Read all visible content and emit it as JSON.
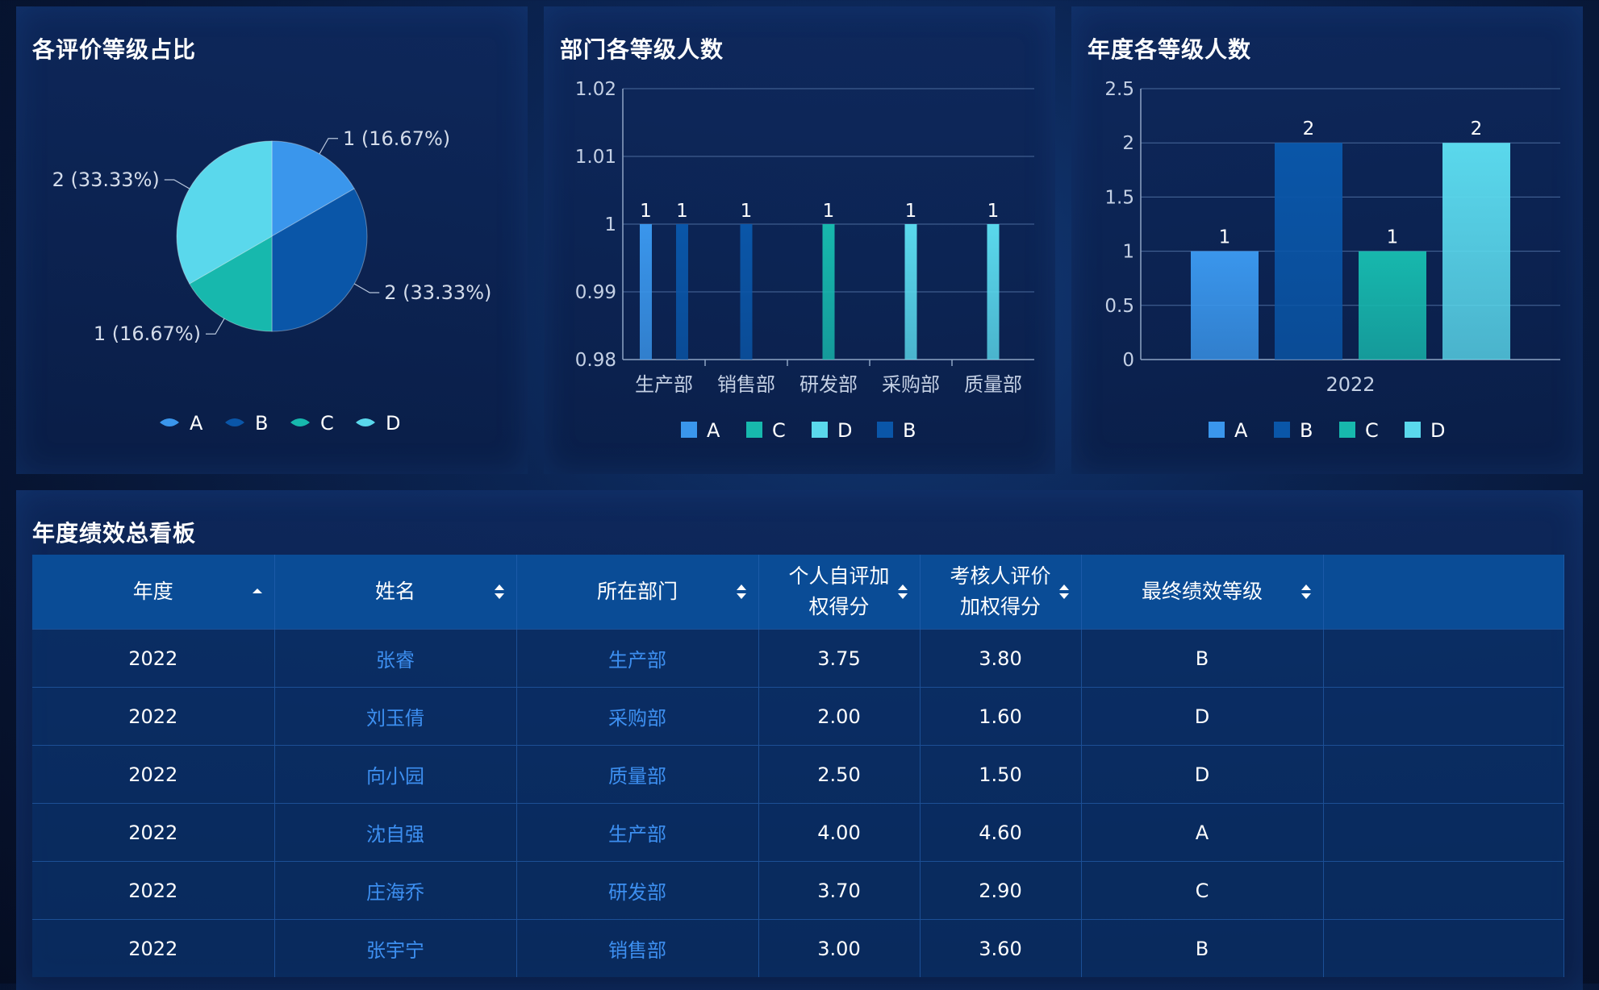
{
  "colors": {
    "A": "#3a96ec",
    "B": "#0a56a8",
    "C": "#17b8ad",
    "D": "#5ad8ec"
  },
  "panels": {
    "pie": {
      "title": "各评价等级占比"
    },
    "dept": {
      "title": "部门各等级人数"
    },
    "year": {
      "title": "年度各等级人数"
    },
    "table": {
      "title": "年度绩效总看板"
    }
  },
  "chart_data": [
    {
      "type": "pie",
      "title": "各评价等级占比",
      "categories": [
        "A",
        "B",
        "C",
        "D"
      ],
      "values": [
        1,
        2,
        1,
        2
      ],
      "labels": [
        "1 (16.67%)",
        "2 (33.33%)",
        "1 (16.67%)",
        "2 (33.33%)"
      ],
      "legend": [
        "A",
        "B",
        "C",
        "D"
      ],
      "legend_position": "bottom"
    },
    {
      "type": "bar",
      "title": "部门各等级人数",
      "categories": [
        "生产部",
        "销售部",
        "研发部",
        "采购部",
        "质量部"
      ],
      "series": [
        {
          "name": "A",
          "values": [
            1,
            null,
            null,
            null,
            null
          ]
        },
        {
          "name": "C",
          "values": [
            null,
            null,
            1,
            null,
            null
          ]
        },
        {
          "name": "D",
          "values": [
            null,
            null,
            null,
            1,
            1
          ]
        },
        {
          "name": "B",
          "values": [
            1,
            1,
            null,
            null,
            null
          ]
        }
      ],
      "ylim": [
        0.98,
        1.02
      ],
      "yticks": [
        "1.02",
        "1.01",
        "1",
        "0.99",
        "0.98"
      ],
      "grid": true,
      "legend_position": "bottom"
    },
    {
      "type": "bar",
      "title": "年度各等级人数",
      "categories": [
        "2022"
      ],
      "series": [
        {
          "name": "A",
          "values": [
            1
          ]
        },
        {
          "name": "B",
          "values": [
            2
          ]
        },
        {
          "name": "C",
          "values": [
            1
          ]
        },
        {
          "name": "D",
          "values": [
            2
          ]
        }
      ],
      "ylim": [
        0,
        2.5
      ],
      "yticks": [
        "2.5",
        "2",
        "1.5",
        "1",
        "0.5",
        "0"
      ],
      "grid": true,
      "legend_position": "bottom"
    }
  ],
  "table": {
    "columns": [
      "年度",
      "姓名",
      "所在部门",
      "个人自评加权得分",
      "考核人评价加权得分",
      "最终绩效等级",
      ""
    ],
    "column_lines": [
      [
        "年度"
      ],
      [
        "姓名"
      ],
      [
        "所在部门"
      ],
      [
        "个人自评加",
        "权得分"
      ],
      [
        "考核人评价",
        "加权得分"
      ],
      [
        "最终绩效等级"
      ],
      []
    ],
    "rows": [
      [
        "2022",
        "张睿",
        "生产部",
        "3.75",
        "3.80",
        "B",
        ""
      ],
      [
        "2022",
        "刘玉倩",
        "采购部",
        "2.00",
        "1.60",
        "D",
        ""
      ],
      [
        "2022",
        "向小园",
        "质量部",
        "2.50",
        "1.50",
        "D",
        ""
      ],
      [
        "2022",
        "沈自强",
        "生产部",
        "4.00",
        "4.60",
        "A",
        ""
      ],
      [
        "2022",
        "庄海乔",
        "研发部",
        "3.70",
        "2.90",
        "C",
        ""
      ],
      [
        "2022",
        "张宇宁",
        "销售部",
        "3.00",
        "3.60",
        "B",
        ""
      ]
    ]
  }
}
